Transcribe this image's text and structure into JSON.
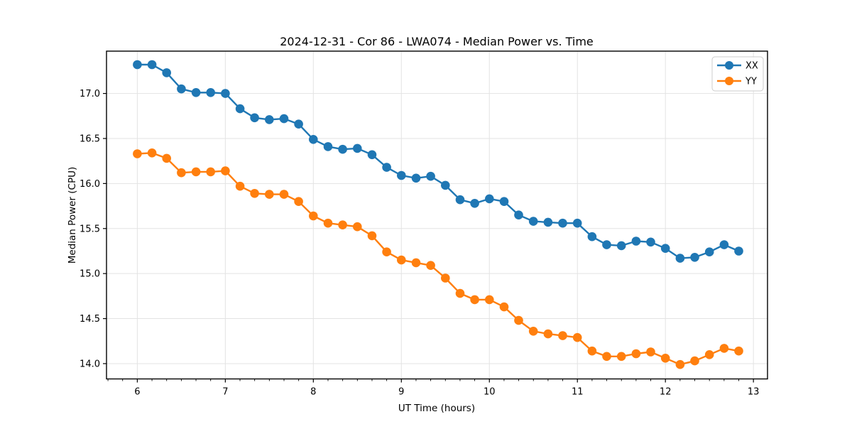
{
  "title": "2024-12-31 - Cor 86 - LWA074 - Median Power vs. Time",
  "chart_data": {
    "type": "line",
    "title": "2024-12-31 - Cor 86 - LWA074 - Median Power vs. Time",
    "xlabel": "UT Time (hours)",
    "ylabel": "Median Power (CPU)",
    "xlim": [
      5.65,
      13.16
    ],
    "ylim": [
      13.83,
      17.47
    ],
    "x_tick_labels": [
      "6",
      "7",
      "8",
      "9",
      "10",
      "11",
      "12",
      "13"
    ],
    "y_tick_labels": [
      "14.0",
      "14.5",
      "15.0",
      "15.5",
      "16.0",
      "16.5",
      "17.0"
    ],
    "x_minor_tick_step": 0.166667,
    "grid": true,
    "grid_color": "#e3e3e3",
    "legend_position": "top-right",
    "marker": "circle",
    "x": [
      6.0,
      6.167,
      6.333,
      6.5,
      6.667,
      6.833,
      7.0,
      7.167,
      7.333,
      7.5,
      7.667,
      7.833,
      8.0,
      8.167,
      8.333,
      8.5,
      8.667,
      8.833,
      9.0,
      9.167,
      9.333,
      9.5,
      9.667,
      9.833,
      10.0,
      10.167,
      10.333,
      10.5,
      10.667,
      10.833,
      11.0,
      11.167,
      11.333,
      11.5,
      11.667,
      11.833,
      12.0,
      12.167,
      12.333,
      12.5,
      12.667,
      12.833
    ],
    "series": [
      {
        "name": "XX",
        "color": "#1f77b4",
        "values": [
          17.32,
          17.32,
          17.23,
          17.05,
          17.01,
          17.01,
          17.0,
          16.83,
          16.73,
          16.71,
          16.72,
          16.66,
          16.49,
          16.41,
          16.38,
          16.39,
          16.32,
          16.18,
          16.09,
          16.06,
          16.08,
          15.98,
          15.82,
          15.78,
          15.83,
          15.8,
          15.65,
          15.58,
          15.57,
          15.56,
          15.56,
          15.41,
          15.32,
          15.31,
          15.36,
          15.35,
          15.28,
          15.17,
          15.18,
          15.24,
          15.32,
          15.25
        ]
      },
      {
        "name": "YY",
        "color": "#ff7f0e",
        "values": [
          16.33,
          16.34,
          16.28,
          16.12,
          16.13,
          16.13,
          16.14,
          15.97,
          15.89,
          15.88,
          15.88,
          15.8,
          15.64,
          15.56,
          15.54,
          15.52,
          15.42,
          15.24,
          15.15,
          15.12,
          15.09,
          14.95,
          14.78,
          14.71,
          14.71,
          14.63,
          14.48,
          14.36,
          14.33,
          14.31,
          14.29,
          14.14,
          14.08,
          14.08,
          14.11,
          14.13,
          14.06,
          13.99,
          14.03,
          14.1,
          14.17,
          14.14
        ]
      }
    ]
  }
}
